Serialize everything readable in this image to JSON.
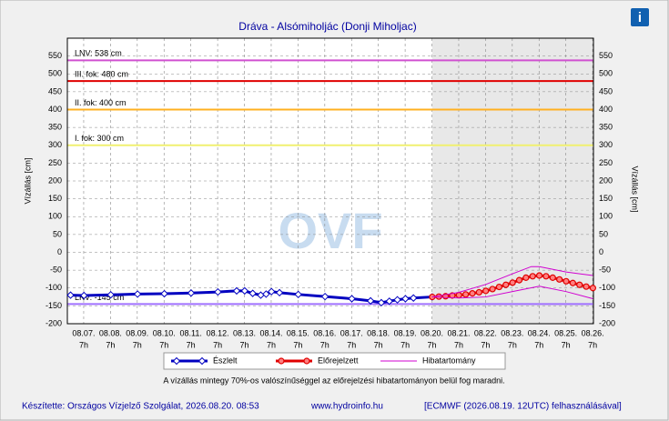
{
  "chart_data": {
    "type": "line",
    "title": "Dráva - Alsómiholjác (Donji Miholjac)",
    "ylabel": "Vízállás [cm]",
    "watermark": "OVF",
    "note": "A vízállás mintegy 70%-os valószínűséggel az előrejelzési hibatartományon belül fog maradni.",
    "footer": [
      "Készítette: Országos Vízjelző Szolgálat, 2026.08.20. 08:53",
      "www.hydroinfo.hu",
      "[ECMWF (2026.08.19. 12UTC) felhasználásával]"
    ],
    "info_icon": "i",
    "ylim": [
      -200,
      600
    ],
    "yticks": [
      -200,
      -150,
      -100,
      -50,
      0,
      50,
      100,
      150,
      200,
      250,
      300,
      350,
      400,
      450,
      500,
      550
    ],
    "xlim": [
      6.68,
      26.32
    ],
    "xticks": [
      {
        "value": 7.29,
        "label": "08.07."
      },
      {
        "value": 8.29,
        "label": "08.08."
      },
      {
        "value": 9.29,
        "label": "08.09."
      },
      {
        "value": 10.29,
        "label": "08.10."
      },
      {
        "value": 11.29,
        "label": "08.11."
      },
      {
        "value": 12.29,
        "label": "08.12."
      },
      {
        "value": 13.29,
        "label": "08.13."
      },
      {
        "value": 14.29,
        "label": "08.14."
      },
      {
        "value": 15.29,
        "label": "08.15."
      },
      {
        "value": 16.29,
        "label": "08.16."
      },
      {
        "value": 17.29,
        "label": "08.17."
      },
      {
        "value": 18.29,
        "label": "08.18."
      },
      {
        "value": 19.29,
        "label": "08.19."
      },
      {
        "value": 20.29,
        "label": "08.20."
      },
      {
        "value": 21.29,
        "label": "08.21."
      },
      {
        "value": 22.29,
        "label": "08.22."
      },
      {
        "value": 23.29,
        "label": "08.23."
      },
      {
        "value": 24.29,
        "label": "08.24."
      },
      {
        "value": 25.29,
        "label": "08.25."
      },
      {
        "value": 26.29,
        "label": "08.26."
      }
    ],
    "xtick_hours": [
      "7h",
      "7h",
      "7h",
      "7h",
      "7h",
      "7h",
      "7h",
      "7h",
      "7h",
      "7h",
      "7h",
      "7h",
      "7h",
      "7h",
      "7h",
      "7h",
      "7h",
      "7h",
      "7h",
      "7h"
    ],
    "grid": true,
    "thresholds": [
      {
        "label": "LNV: 538 cm",
        "value": 538,
        "color": "#d050d0"
      },
      {
        "label": "III. fok: 480 cm",
        "value": 480,
        "color": "#e00000"
      },
      {
        "label": "II. fok: 400 cm",
        "value": 400,
        "color": "#ffb020"
      },
      {
        "label": "I. fok: 300 cm",
        "value": 300,
        "color": "#f0f070"
      },
      {
        "label": "LKV: -145 cm",
        "value": -145,
        "color": "#a070ff"
      }
    ],
    "series": [
      {
        "name": "Észlelt",
        "color": "#0000c0",
        "marker": "diamond",
        "x": [
          6.8,
          7.3,
          8.3,
          9.3,
          10.3,
          11.3,
          12.3,
          13.0,
          13.3,
          13.6,
          13.9,
          14.1,
          14.3,
          14.6,
          15.3,
          16.3,
          17.3,
          18.0,
          18.4,
          18.7,
          19.0,
          19.3,
          19.6,
          20.3
        ],
        "values": [
          -120,
          -121,
          -119,
          -117,
          -116,
          -114,
          -111,
          -108,
          -108,
          -115,
          -120,
          -117,
          -110,
          -113,
          -118,
          -124,
          -130,
          -136,
          -141,
          -137,
          -133,
          -130,
          -128,
          -125
        ]
      },
      {
        "name": "Előrejelzett",
        "color": "#e00000",
        "marker": "circle",
        "x": [
          20.3,
          20.55,
          20.8,
          21.05,
          21.3,
          21.55,
          21.8,
          22.05,
          22.3,
          22.55,
          22.8,
          23.05,
          23.3,
          23.55,
          23.8,
          24.05,
          24.3,
          24.55,
          24.8,
          25.05,
          25.3,
          25.55,
          25.8,
          26.05,
          26.3
        ],
        "values": [
          -125,
          -124,
          -123,
          -121,
          -120,
          -118,
          -115,
          -112,
          -108,
          -103,
          -97,
          -91,
          -85,
          -78,
          -71,
          -67,
          -65,
          -67,
          -71,
          -76,
          -81,
          -86,
          -91,
          -96,
          -100
        ]
      },
      {
        "name": "Hibatartomány",
        "color": "#d000d0",
        "marker": "none",
        "x": [
          20.3,
          21.3,
          22.3,
          23.3,
          24.0,
          24.3,
          25.3,
          26.3
        ],
        "values": [
          -125,
          -112,
          -90,
          -60,
          -40,
          -40,
          -55,
          -65
        ],
        "x_low": [
          20.3,
          21.3,
          22.3,
          23.3,
          24.3,
          25.3,
          26.3
        ],
        "values_low": [
          -125,
          -128,
          -125,
          -110,
          -95,
          -110,
          -130
        ]
      }
    ]
  }
}
